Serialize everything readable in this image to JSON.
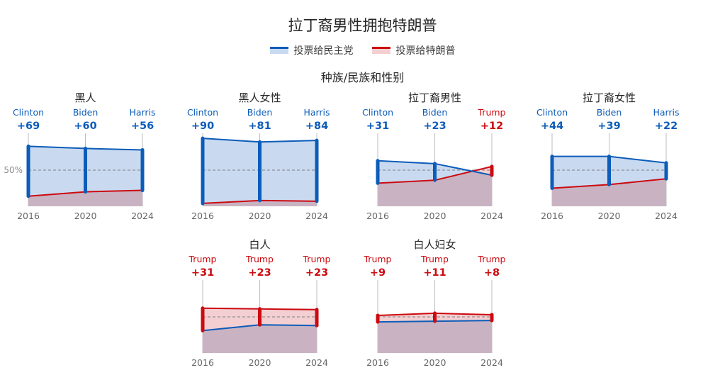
{
  "title": "拉丁裔男性拥抱特朗普",
  "legend": {
    "dem": "投票给民主党",
    "rep": "投票给特朗普"
  },
  "subtitle": "种族/民族和性别",
  "colors": {
    "dem": "#0c5cb9",
    "dem_fill": "#c9daf0",
    "rep": "#cc0a10",
    "rep_fill": "#f3cfd1",
    "overlap_fill": "#c9b3c2",
    "grid": "#bdbdbd",
    "axis_text": "#666666"
  },
  "reference_label": "50%",
  "chart_data": [
    {
      "type": "line",
      "title": "黑人",
      "x": [
        "2016",
        "2020",
        "2024"
      ],
      "ylim": [
        0,
        100
      ],
      "reference_line": 50,
      "winners": [
        "Clinton",
        "Biden",
        "Harris"
      ],
      "winner_party": [
        "dem",
        "dem",
        "dem"
      ],
      "margins": [
        "+69",
        "+60",
        "+56"
      ],
      "series": [
        {
          "key": "dem",
          "values": [
            83,
            80,
            78
          ]
        },
        {
          "key": "rep",
          "values": [
            14,
            20,
            22
          ]
        }
      ]
    },
    {
      "type": "line",
      "title": "黑人女性",
      "x": [
        "2016",
        "2020",
        "2024"
      ],
      "ylim": [
        0,
        100
      ],
      "reference_line": 50,
      "winners": [
        "Clinton",
        "Biden",
        "Harris"
      ],
      "winner_party": [
        "dem",
        "dem",
        "dem"
      ],
      "margins": [
        "+90",
        "+81",
        "+84"
      ],
      "series": [
        {
          "key": "dem",
          "values": [
            94,
            89,
            91
          ]
        },
        {
          "key": "rep",
          "values": [
            4,
            8,
            7
          ]
        }
      ]
    },
    {
      "type": "line",
      "title": "拉丁裔男性",
      "x": [
        "2016",
        "2020",
        "2024"
      ],
      "ylim": [
        0,
        100
      ],
      "reference_line": 50,
      "winners": [
        "Clinton",
        "Biden",
        "Trump"
      ],
      "winner_party": [
        "dem",
        "dem",
        "rep"
      ],
      "margins": [
        "+31",
        "+23",
        "+12"
      ],
      "series": [
        {
          "key": "dem",
          "values": [
            63,
            59,
            43
          ]
        },
        {
          "key": "rep",
          "values": [
            32,
            36,
            55
          ]
        }
      ]
    },
    {
      "type": "line",
      "title": "拉丁裔女性",
      "x": [
        "2016",
        "2020",
        "2024"
      ],
      "ylim": [
        0,
        100
      ],
      "reference_line": 50,
      "winners": [
        "Clinton",
        "Biden",
        "Harris"
      ],
      "winner_party": [
        "dem",
        "dem",
        "dem"
      ],
      "margins": [
        "+44",
        "+39",
        "+22"
      ],
      "series": [
        {
          "key": "dem",
          "values": [
            69,
            69,
            60
          ]
        },
        {
          "key": "rep",
          "values": [
            25,
            30,
            38
          ]
        }
      ]
    },
    {
      "type": "line",
      "title": "白人",
      "x": [
        "2016",
        "2020",
        "2024"
      ],
      "ylim": [
        0,
        100
      ],
      "reference_line": 50,
      "winners": [
        "Trump",
        "Trump",
        "Trump"
      ],
      "winner_party": [
        "rep",
        "rep",
        "rep"
      ],
      "margins": [
        "+31",
        "+23",
        "+23"
      ],
      "series": [
        {
          "key": "dem",
          "values": [
            31,
            39,
            38
          ]
        },
        {
          "key": "rep",
          "values": [
            62,
            61,
            60
          ]
        }
      ]
    },
    {
      "type": "line",
      "title": "白人妇女",
      "x": [
        "2016",
        "2020",
        "2024"
      ],
      "ylim": [
        0,
        100
      ],
      "reference_line": 50,
      "winners": [
        "Trump",
        "Trump",
        "Trump"
      ],
      "winner_party": [
        "rep",
        "rep",
        "rep"
      ],
      "margins": [
        "+9",
        "+11",
        "+8"
      ],
      "series": [
        {
          "key": "dem",
          "values": [
            43,
            44,
            45
          ]
        },
        {
          "key": "rep",
          "values": [
            52,
            55,
            53
          ]
        }
      ]
    }
  ]
}
